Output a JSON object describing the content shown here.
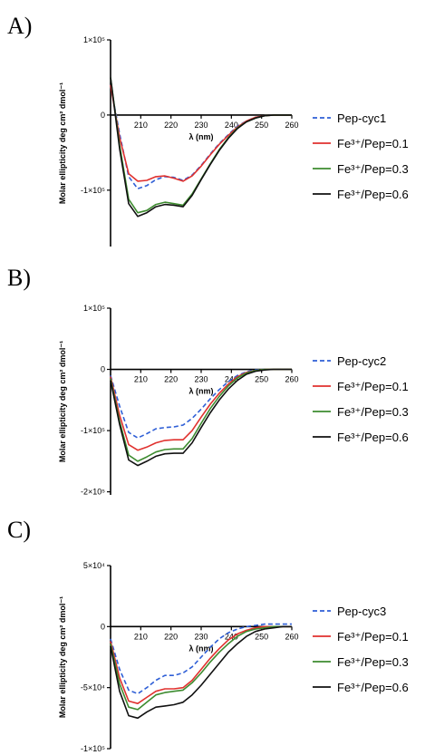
{
  "chart_data": [
    {
      "type": "line",
      "panel_label": "A)",
      "xlabel": "λ (nm)",
      "ylabel": "Molar ellipticity deg cm² dmol⁻¹",
      "xlim": [
        200,
        260
      ],
      "ylim": [
        -175000,
        100000
      ],
      "x_ticks": [
        "210",
        "220",
        "230",
        "240",
        "250",
        "260"
      ],
      "y_ticks": [
        {
          "value": 100000,
          "label": "1×10⁵"
        },
        {
          "value": 0,
          "label": "0"
        },
        {
          "value": -100000,
          "label": "-1×10⁵"
        }
      ],
      "legend_position": "right",
      "series": [
        {
          "name": "Pep-cyc1",
          "color": "#2f5fd6",
          "dash": true,
          "x": [
            200,
            203,
            206,
            209,
            212,
            215,
            218,
            221,
            224,
            227,
            230,
            233,
            236,
            239,
            242,
            245,
            248,
            251,
            254,
            257,
            260
          ],
          "y": [
            40000,
            -25000,
            -82000,
            -98000,
            -94000,
            -86000,
            -82000,
            -83000,
            -87000,
            -80000,
            -67000,
            -52000,
            -38000,
            -26000,
            -15000,
            -8000,
            -3000,
            -1000,
            0,
            0,
            0
          ]
        },
        {
          "name": "Fe³⁺/Pep=0.1",
          "color": "#e0312e",
          "dash": false,
          "x": [
            200,
            203,
            206,
            209,
            212,
            215,
            218,
            221,
            224,
            227,
            230,
            233,
            236,
            239,
            242,
            245,
            248,
            251,
            254,
            257,
            260
          ],
          "y": [
            40000,
            -30000,
            -78000,
            -88000,
            -87000,
            -82000,
            -81000,
            -84000,
            -88000,
            -81000,
            -68000,
            -53000,
            -39000,
            -27000,
            -16000,
            -8000,
            -3000,
            -1000,
            0,
            0,
            0
          ]
        },
        {
          "name": "Fe³⁺/Pep=0.3",
          "color": "#3d8b2f",
          "dash": false,
          "x": [
            200,
            203,
            206,
            209,
            212,
            215,
            218,
            221,
            224,
            227,
            230,
            233,
            236,
            239,
            242,
            245,
            248,
            251,
            254,
            257,
            260
          ],
          "y": [
            50000,
            -40000,
            -112000,
            -130000,
            -127000,
            -119000,
            -116000,
            -118000,
            -120000,
            -105000,
            -85000,
            -65000,
            -46000,
            -30000,
            -17000,
            -9000,
            -4000,
            -1000,
            0,
            0,
            0
          ]
        },
        {
          "name": "Fe³⁺/Pep=0.6",
          "color": "#111111",
          "dash": false,
          "x": [
            200,
            203,
            206,
            209,
            212,
            215,
            218,
            221,
            224,
            227,
            230,
            233,
            236,
            239,
            242,
            245,
            248,
            251,
            254,
            257,
            260
          ],
          "y": [
            50000,
            -45000,
            -118000,
            -135000,
            -130000,
            -122000,
            -119000,
            -120000,
            -122000,
            -107000,
            -86000,
            -66000,
            -47000,
            -31000,
            -18000,
            -9000,
            -4000,
            -1000,
            0,
            0,
            0
          ]
        }
      ]
    },
    {
      "type": "line",
      "panel_label": "B)",
      "xlabel": "λ (nm)",
      "ylabel": "Molar ellipticity deg cm² dmol⁻¹",
      "xlim": [
        200,
        260
      ],
      "ylim": [
        -205000,
        100000
      ],
      "x_ticks": [
        "210",
        "220",
        "230",
        "240",
        "250",
        "260"
      ],
      "y_ticks": [
        {
          "value": 100000,
          "label": "1×10⁵"
        },
        {
          "value": 0,
          "label": "0"
        },
        {
          "value": -100000,
          "label": "-1×10⁵"
        },
        {
          "value": -200000,
          "label": "-2×10⁵"
        }
      ],
      "legend_position": "right",
      "series": [
        {
          "name": "Pep-cyc2",
          "color": "#2f5fd6",
          "dash": true,
          "x": [
            200,
            203,
            206,
            209,
            212,
            215,
            218,
            221,
            224,
            227,
            230,
            233,
            236,
            239,
            242,
            245,
            248,
            251,
            254,
            257,
            260
          ],
          "y": [
            -10000,
            -60000,
            -103000,
            -112000,
            -105000,
            -97000,
            -95000,
            -94000,
            -91000,
            -80000,
            -65000,
            -48000,
            -33000,
            -20000,
            -10000,
            -4000,
            -1000,
            0,
            0,
            0,
            0
          ]
        },
        {
          "name": "Fe³⁺/Pep=0.1",
          "color": "#e0312e",
          "dash": false,
          "x": [
            200,
            203,
            206,
            209,
            212,
            215,
            218,
            221,
            224,
            227,
            230,
            233,
            236,
            239,
            242,
            245,
            248,
            251,
            254,
            257,
            260
          ],
          "y": [
            -12000,
            -75000,
            -123000,
            -132000,
            -127000,
            -120000,
            -116000,
            -115000,
            -115000,
            -100000,
            -78000,
            -57000,
            -39000,
            -24000,
            -12000,
            -5000,
            -2000,
            0,
            0,
            0,
            0
          ]
        },
        {
          "name": "Fe³⁺/Pep=0.3",
          "color": "#3d8b2f",
          "dash": false,
          "x": [
            200,
            203,
            206,
            209,
            212,
            215,
            218,
            221,
            224,
            227,
            230,
            233,
            236,
            239,
            242,
            245,
            248,
            251,
            254,
            257,
            260
          ],
          "y": [
            -15000,
            -85000,
            -140000,
            -150000,
            -143000,
            -135000,
            -131000,
            -130000,
            -130000,
            -113000,
            -88000,
            -64000,
            -44000,
            -27000,
            -14000,
            -6000,
            -2000,
            0,
            0,
            0,
            0
          ]
        },
        {
          "name": "Fe³⁺/Pep=0.6",
          "color": "#111111",
          "dash": false,
          "x": [
            200,
            203,
            206,
            209,
            212,
            215,
            218,
            221,
            224,
            227,
            230,
            233,
            236,
            239,
            242,
            245,
            248,
            251,
            254,
            257,
            260
          ],
          "y": [
            -18000,
            -90000,
            -148000,
            -157000,
            -150000,
            -142000,
            -138000,
            -137000,
            -137000,
            -120000,
            -95000,
            -71000,
            -50000,
            -32000,
            -18000,
            -8000,
            -3000,
            -1000,
            0,
            0,
            0
          ]
        }
      ]
    },
    {
      "type": "line",
      "panel_label": "C)",
      "xlabel": "λ (nm)",
      "ylabel": "Molar ellipticity deg cm² dmol⁻¹",
      "xlim": [
        200,
        260
      ],
      "ylim": [
        -100000,
        50000
      ],
      "x_ticks": [
        "210",
        "220",
        "230",
        "240",
        "250",
        "260"
      ],
      "y_ticks": [
        {
          "value": 50000,
          "label": "5×10⁴"
        },
        {
          "value": 0,
          "label": "0"
        },
        {
          "value": -50000,
          "label": "-5×10⁴"
        },
        {
          "value": -100000,
          "label": "-1×10⁵"
        }
      ],
      "legend_position": "right",
      "series": [
        {
          "name": "Pep-cyc3",
          "color": "#2f5fd6",
          "dash": true,
          "x": [
            200,
            203,
            206,
            209,
            212,
            215,
            218,
            221,
            224,
            227,
            230,
            233,
            236,
            239,
            242,
            245,
            248,
            251,
            254,
            257,
            260
          ],
          "y": [
            -10000,
            -35000,
            -52000,
            -55000,
            -50000,
            -44000,
            -40000,
            -40000,
            -38000,
            -33000,
            -25000,
            -17000,
            -10000,
            -5000,
            -2000,
            0,
            1000,
            2000,
            2000,
            2000,
            2000
          ]
        },
        {
          "name": "Fe³⁺/Pep=0.1",
          "color": "#e0312e",
          "dash": false,
          "x": [
            200,
            203,
            206,
            209,
            212,
            215,
            218,
            221,
            224,
            227,
            230,
            233,
            236,
            239,
            242,
            245,
            248,
            251,
            254,
            257,
            260
          ],
          "y": [
            -12000,
            -42000,
            -61000,
            -63000,
            -58000,
            -53000,
            -51000,
            -51000,
            -50000,
            -44000,
            -35000,
            -26000,
            -18000,
            -11000,
            -6000,
            -3000,
            -1000,
            0,
            0,
            0,
            0
          ]
        },
        {
          "name": "Fe³⁺/Pep=0.3",
          "color": "#3d8b2f",
          "dash": false,
          "x": [
            200,
            203,
            206,
            209,
            212,
            215,
            218,
            221,
            224,
            227,
            230,
            233,
            236,
            239,
            242,
            245,
            248,
            251,
            254,
            257,
            260
          ],
          "y": [
            -14000,
            -47000,
            -66000,
            -68000,
            -62000,
            -56000,
            -54000,
            -53000,
            -52000,
            -46000,
            -38000,
            -29000,
            -21000,
            -14000,
            -8000,
            -4000,
            -2000,
            -1000,
            0,
            0,
            0
          ]
        },
        {
          "name": "Fe³⁺/Pep=0.6",
          "color": "#111111",
          "dash": false,
          "x": [
            200,
            203,
            206,
            209,
            212,
            215,
            218,
            221,
            224,
            227,
            230,
            233,
            236,
            239,
            242,
            245,
            248,
            251,
            254,
            257,
            260
          ],
          "y": [
            -16000,
            -53000,
            -73000,
            -75000,
            -70000,
            -66000,
            -65000,
            -64000,
            -62000,
            -56000,
            -48000,
            -39000,
            -30000,
            -21000,
            -14000,
            -8000,
            -4000,
            -2000,
            -1000,
            0,
            0
          ]
        }
      ]
    }
  ]
}
